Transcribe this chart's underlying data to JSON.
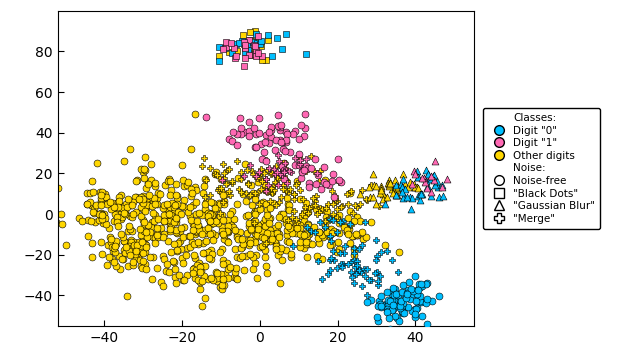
{
  "colors": {
    "digit0": "#00BFFF",
    "digit1": "#FF69B4",
    "other": "#FFD700"
  },
  "legend": {
    "classes_title": "Classes:",
    "digit0_label": "Digit \"0\"",
    "digit1_label": "Digit \"1\"",
    "other_label": "Other digits",
    "noise_title": "Noise:",
    "noise_free_label": "Noise-free",
    "black_dots_label": "\"Black Dots\"",
    "gaussian_blur_label": "\"Gaussian Blur\"",
    "merge_label": "\"Merge\""
  },
  "xlim": [
    -52,
    55
  ],
  "ylim": [
    -55,
    100
  ],
  "xticks": [
    -40,
    -20,
    0,
    20,
    40
  ],
  "yticks": [
    -40,
    -20,
    0,
    20,
    40,
    60,
    80
  ],
  "marker_size": 25,
  "marker_size_legend": 7,
  "edge_color": "black",
  "edge_width": 0.4,
  "bg_color": "#ffffff",
  "figsize": [
    6.4,
    3.62
  ],
  "dpi": 100
}
